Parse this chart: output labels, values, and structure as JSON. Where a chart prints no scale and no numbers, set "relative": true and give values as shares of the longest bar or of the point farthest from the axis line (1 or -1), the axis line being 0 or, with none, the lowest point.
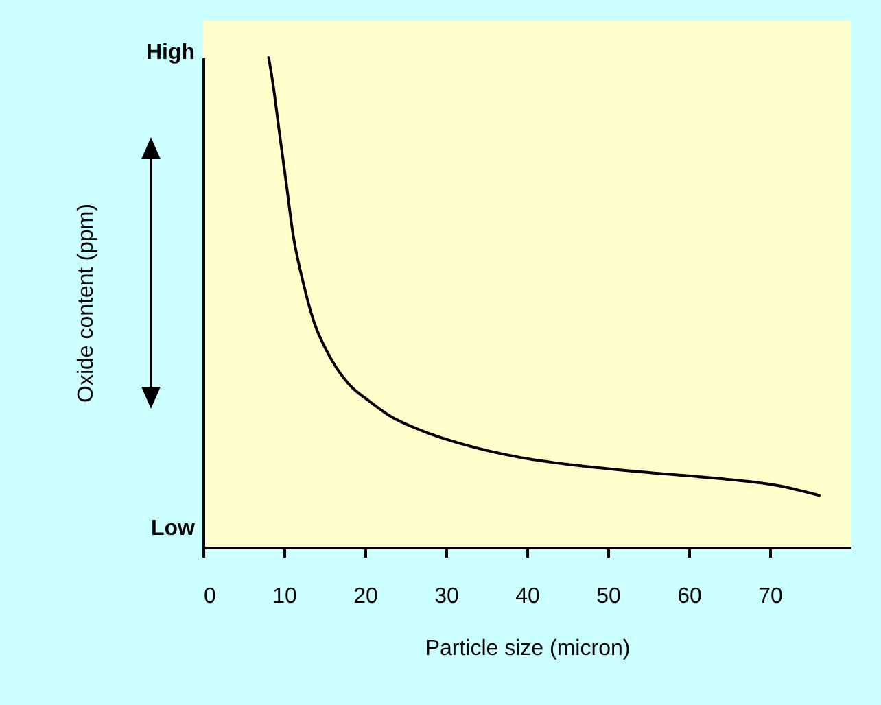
{
  "chart_data": {
    "type": "line",
    "xlabel": "Particle size (micron)",
    "ylabel": "Oxide content (ppm)",
    "relative": true,
    "annotations": [
      "High",
      "Low"
    ],
    "x": [
      8.1,
      8.6,
      9.4,
      10.3,
      11.1,
      12.3,
      13.7,
      15.3,
      17.9,
      20.4,
      22.9,
      27.2,
      32.2,
      39,
      45.7,
      54.1,
      62.6,
      71,
      76.1
    ],
    "series": [
      {
        "color": "#000000",
        "values": [
          1.0,
          0.95,
          0.85,
          0.74,
          0.64,
          0.545,
          0.46,
          0.4,
          0.335,
          0.3,
          0.27,
          0.237,
          0.21,
          0.184,
          0.168,
          0.154,
          0.142,
          0.126,
          0.106
        ]
      }
    ],
    "xlim": [
      0,
      80
    ],
    "xticks": [
      0,
      10,
      20,
      30,
      40,
      50,
      60,
      70
    ],
    "grid": false,
    "marker": "none",
    "line_style": "solid"
  }
}
